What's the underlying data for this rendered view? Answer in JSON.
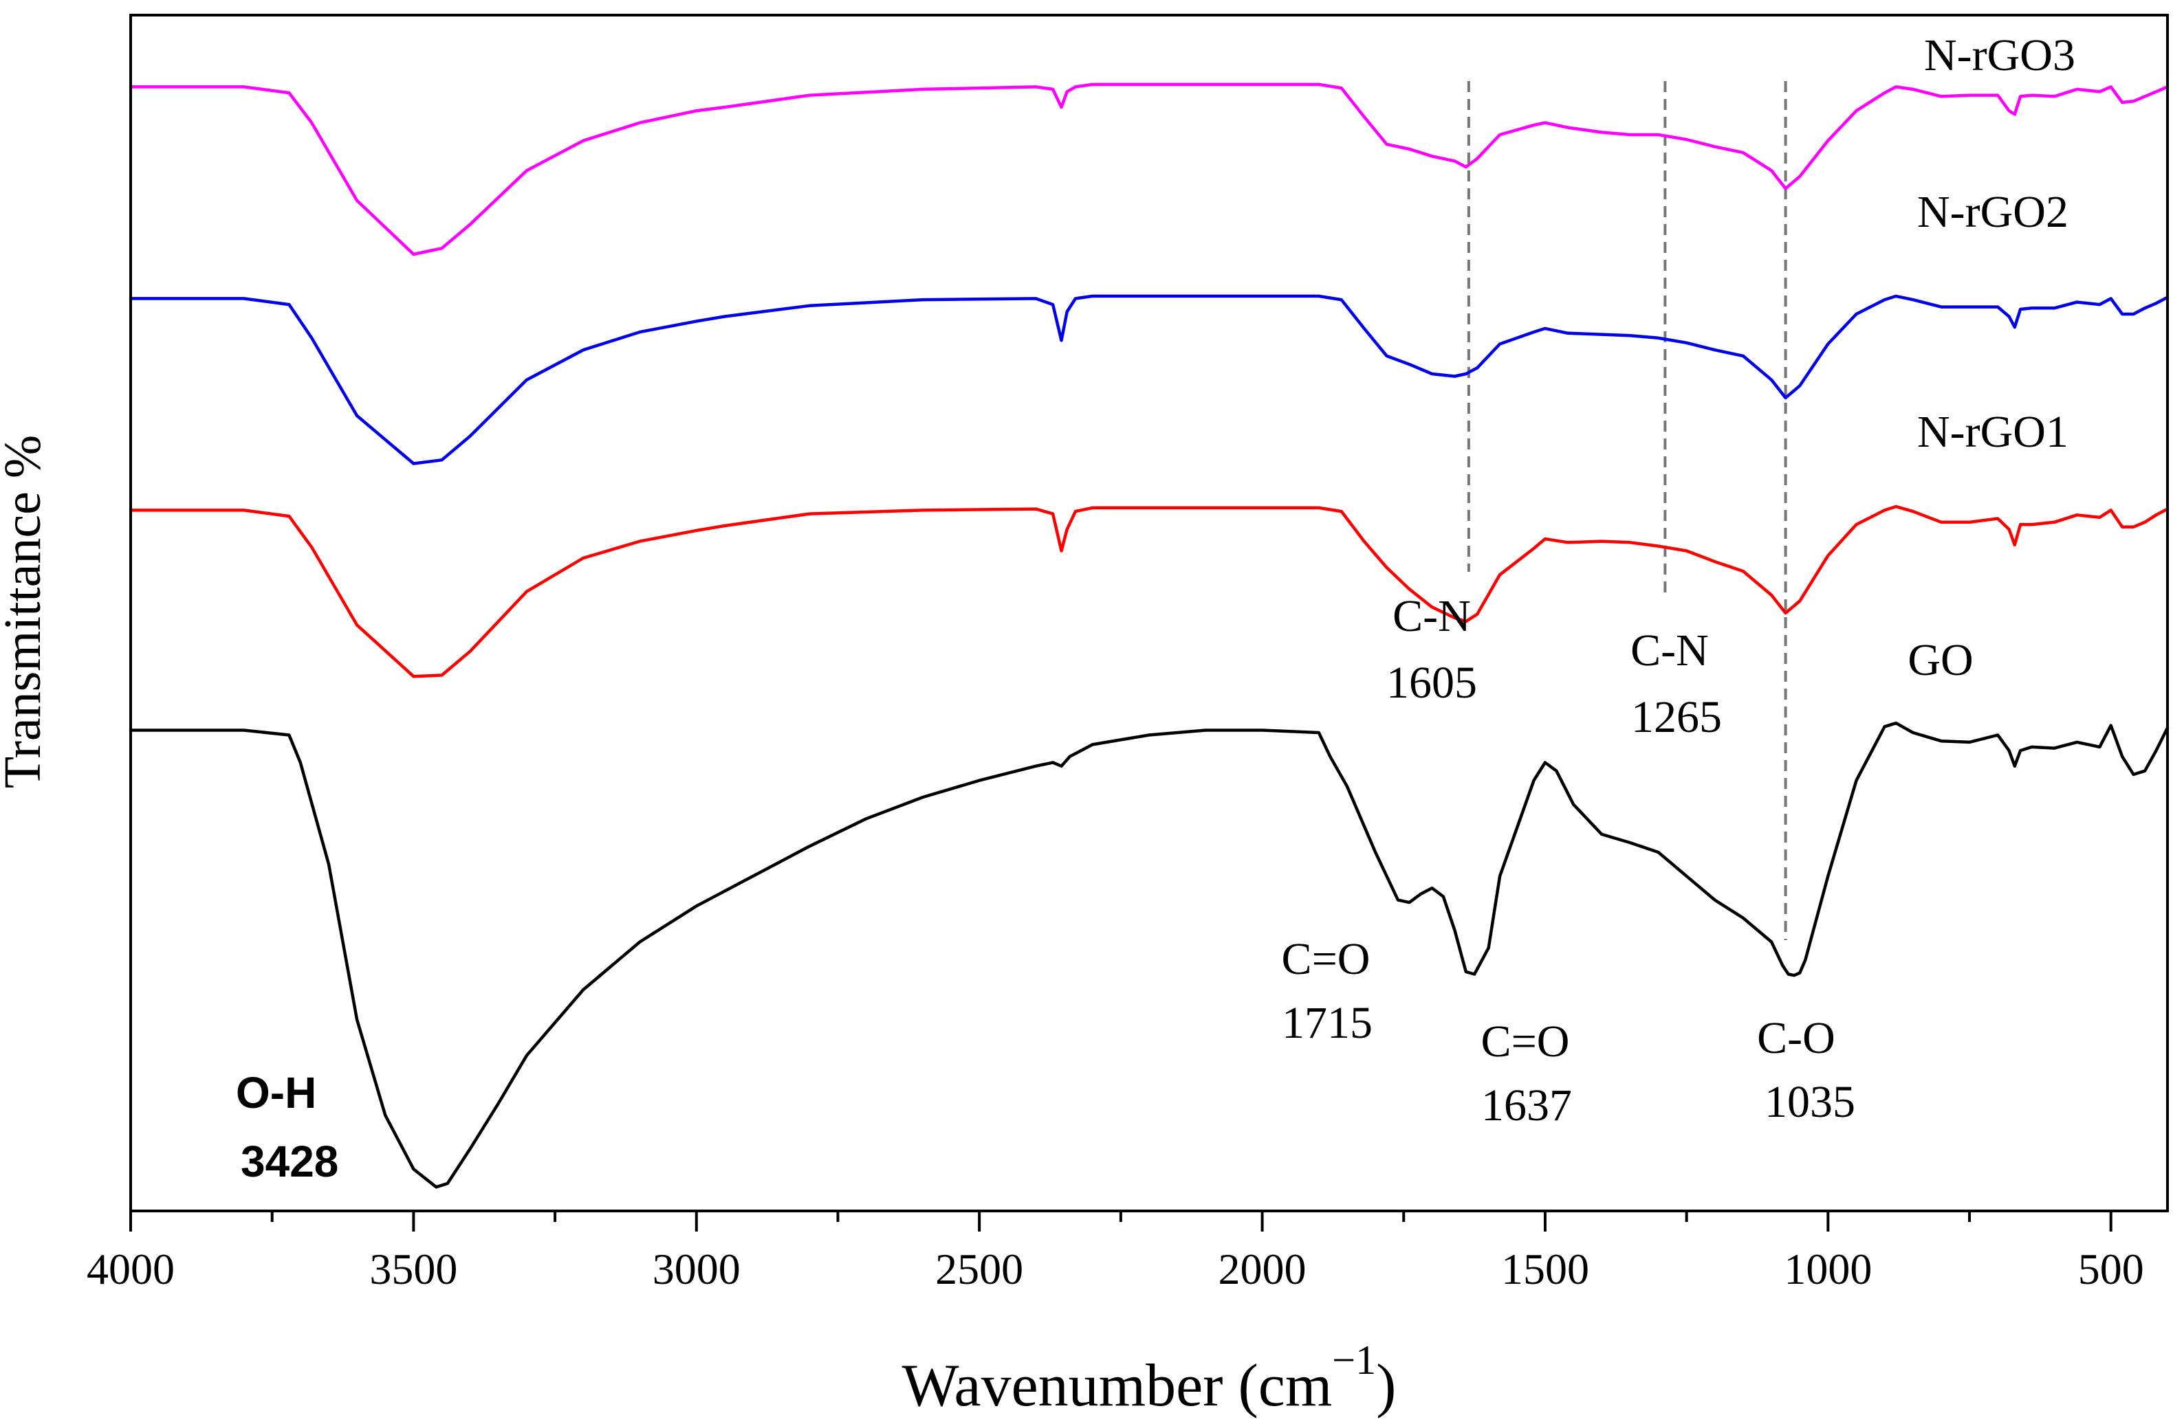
{
  "chart_data": {
    "type": "line",
    "title": "",
    "xlabel": "Wavenumber (cm",
    "xlabel_sup": "−1",
    "xlabel_close": ")",
    "ylabel": "Transmittance %",
    "xlim": [
      4000,
      400
    ],
    "x_reversed": true,
    "y_ticks_shown": false,
    "x_ticks": [
      4000,
      3500,
      3000,
      2500,
      2000,
      1500,
      1000,
      500
    ],
    "x_tick_labels": [
      "4000",
      "3500",
      "3000",
      "2500",
      "2000",
      "1500",
      "1000",
      "500"
    ],
    "offset_note": "vertically stacked spectra; values are relative transmittance including offset (top of frame = 100, bottom = 0)",
    "ylim": [
      0,
      100
    ],
    "series": [
      {
        "name": "N-rGO3",
        "label": "N-rGO3",
        "color": "#ff00ff",
        "x": [
          4000,
          3800,
          3720,
          3680,
          3600,
          3500,
          3450,
          3400,
          3300,
          3200,
          3100,
          3000,
          2950,
          2800,
          2600,
          2400,
          2370,
          2355,
          2345,
          2330,
          2300,
          2100,
          1900,
          1860,
          1820,
          1780,
          1740,
          1700,
          1660,
          1640,
          1620,
          1580,
          1520,
          1500,
          1460,
          1400,
          1350,
          1300,
          1250,
          1200,
          1150,
          1100,
          1075,
          1050,
          1000,
          950,
          900,
          880,
          850,
          800,
          750,
          700,
          680,
          670,
          660,
          640,
          600,
          560,
          520,
          500,
          480,
          460,
          440,
          420,
          400
        ],
        "y": [
          94.0,
          94.0,
          93.5,
          91.0,
          84.5,
          80.0,
          80.5,
          82.5,
          87.0,
          89.5,
          91.0,
          92.0,
          92.3,
          93.3,
          93.8,
          94.0,
          93.8,
          92.3,
          93.6,
          94.0,
          94.2,
          94.2,
          94.2,
          93.9,
          91.5,
          89.2,
          88.8,
          88.2,
          87.8,
          87.3,
          88.0,
          90.0,
          90.8,
          91.0,
          90.6,
          90.2,
          90.0,
          90.0,
          89.6,
          89.0,
          88.5,
          87.0,
          85.5,
          86.5,
          89.5,
          92.0,
          93.5,
          94.0,
          93.8,
          93.2,
          93.3,
          93.3,
          92.0,
          91.7,
          93.2,
          93.3,
          93.2,
          93.8,
          93.6,
          94.0,
          92.7,
          92.8,
          93.2,
          93.6,
          94.0
        ]
      },
      {
        "name": "N-rGO2",
        "label": "N-rGO2",
        "color": "#0000ee",
        "x": [
          4000,
          3800,
          3720,
          3680,
          3600,
          3500,
          3450,
          3400,
          3300,
          3200,
          3100,
          3000,
          2950,
          2800,
          2600,
          2400,
          2370,
          2355,
          2345,
          2330,
          2300,
          2100,
          1900,
          1860,
          1820,
          1780,
          1740,
          1700,
          1660,
          1640,
          1620,
          1580,
          1520,
          1500,
          1460,
          1400,
          1350,
          1300,
          1250,
          1200,
          1150,
          1100,
          1075,
          1050,
          1000,
          950,
          900,
          880,
          850,
          800,
          750,
          700,
          680,
          670,
          660,
          640,
          600,
          560,
          520,
          500,
          480,
          460,
          440,
          420,
          400
        ],
        "y": [
          76.3,
          76.3,
          75.8,
          73.0,
          66.5,
          62.5,
          62.8,
          64.8,
          69.5,
          72.0,
          73.5,
          74.4,
          74.8,
          75.7,
          76.2,
          76.3,
          75.8,
          72.8,
          75.2,
          76.3,
          76.5,
          76.5,
          76.5,
          76.2,
          73.8,
          71.5,
          70.8,
          70.0,
          69.8,
          70.0,
          70.5,
          72.5,
          73.5,
          73.8,
          73.4,
          73.3,
          73.2,
          73.0,
          72.6,
          72.0,
          71.5,
          69.5,
          68.0,
          69.0,
          72.5,
          75.0,
          76.2,
          76.5,
          76.2,
          75.6,
          75.6,
          75.6,
          74.8,
          73.9,
          75.4,
          75.5,
          75.5,
          76.0,
          75.8,
          76.3,
          75.0,
          75.0,
          75.5,
          75.9,
          76.4
        ]
      },
      {
        "name": "N-rGO1",
        "label": "N-rGO1",
        "color": "#ff0000",
        "x": [
          4000,
          3800,
          3720,
          3680,
          3600,
          3500,
          3450,
          3400,
          3300,
          3200,
          3100,
          3000,
          2950,
          2800,
          2600,
          2400,
          2370,
          2355,
          2345,
          2330,
          2300,
          2100,
          1900,
          1860,
          1820,
          1780,
          1740,
          1700,
          1660,
          1640,
          1620,
          1580,
          1520,
          1500,
          1460,
          1400,
          1350,
          1300,
          1250,
          1200,
          1150,
          1100,
          1075,
          1050,
          1000,
          950,
          900,
          880,
          850,
          800,
          750,
          700,
          680,
          670,
          660,
          640,
          600,
          560,
          520,
          500,
          480,
          460,
          440,
          420,
          400
        ],
        "y": [
          58.6,
          58.6,
          58.1,
          55.5,
          49.0,
          44.7,
          44.8,
          46.8,
          51.8,
          54.6,
          56.0,
          56.9,
          57.3,
          58.3,
          58.6,
          58.7,
          58.3,
          55.2,
          57.0,
          58.5,
          58.8,
          58.8,
          58.8,
          58.5,
          56.0,
          53.8,
          52.0,
          50.5,
          49.6,
          49.3,
          49.9,
          53.2,
          55.4,
          56.2,
          55.9,
          56.0,
          55.9,
          55.6,
          55.2,
          54.3,
          53.5,
          51.5,
          50.0,
          51.0,
          54.8,
          57.4,
          58.6,
          58.9,
          58.5,
          57.6,
          57.6,
          57.9,
          57.0,
          55.7,
          57.4,
          57.4,
          57.6,
          58.2,
          58.0,
          58.6,
          57.2,
          57.2,
          57.6,
          58.2,
          58.7
        ]
      },
      {
        "name": "GO",
        "label": "GO",
        "color": "#000000",
        "x": [
          4000,
          3800,
          3720,
          3700,
          3650,
          3600,
          3550,
          3500,
          3460,
          3440,
          3400,
          3350,
          3300,
          3200,
          3100,
          3000,
          2900,
          2800,
          2700,
          2600,
          2500,
          2400,
          2370,
          2355,
          2340,
          2300,
          2200,
          2100,
          2000,
          1900,
          1880,
          1850,
          1800,
          1760,
          1740,
          1720,
          1700,
          1680,
          1660,
          1640,
          1625,
          1600,
          1580,
          1550,
          1520,
          1500,
          1480,
          1450,
          1400,
          1350,
          1300,
          1250,
          1200,
          1150,
          1100,
          1080,
          1070,
          1060,
          1050,
          1040,
          1000,
          950,
          900,
          880,
          850,
          800,
          750,
          700,
          680,
          670,
          660,
          640,
          600,
          560,
          520,
          500,
          480,
          460,
          440,
          420,
          400
        ],
        "y": [
          40.2,
          40.2,
          39.8,
          37.5,
          29.0,
          16.0,
          8.0,
          3.5,
          2.0,
          2.3,
          5.2,
          9.0,
          13.0,
          18.5,
          22.5,
          25.5,
          28.0,
          30.5,
          32.8,
          34.6,
          36.0,
          37.2,
          37.5,
          37.2,
          38.0,
          39.0,
          39.8,
          40.2,
          40.2,
          40.0,
          38.0,
          35.5,
          30.0,
          26.0,
          25.8,
          26.5,
          27.0,
          26.3,
          23.5,
          20.0,
          19.8,
          22.0,
          28.0,
          32.0,
          36.0,
          37.5,
          36.8,
          34.0,
          31.5,
          30.8,
          30.0,
          28.0,
          26.0,
          24.5,
          22.5,
          20.5,
          19.8,
          19.7,
          19.9,
          21.0,
          28.0,
          36.0,
          40.5,
          40.8,
          40.0,
          39.3,
          39.2,
          39.8,
          38.5,
          37.2,
          38.5,
          38.8,
          38.7,
          39.2,
          38.8,
          40.6,
          38.0,
          36.5,
          36.8,
          38.5,
          40.4
        ]
      }
    ],
    "reference_lines": [
      {
        "x": 1635,
        "label": "dashed-1605"
      },
      {
        "x": 1288,
        "label": "dashed-1265"
      },
      {
        "x": 1075,
        "label": "dashed-1035"
      }
    ],
    "annotations": [
      {
        "id": "oh",
        "line1": "O-H",
        "line2": "3428",
        "font": "sans",
        "bold": true
      },
      {
        "id": "co1715",
        "line1": "C=O",
        "line2": "1715",
        "font": "serif",
        "bold": false
      },
      {
        "id": "co1637",
        "line1": "C=O",
        "line2": "1637",
        "font": "serif",
        "bold": false
      },
      {
        "id": "c-o1035",
        "line1": "C-O",
        "line2": "1035",
        "font": "serif",
        "bold": false
      },
      {
        "id": "cn1605",
        "line1": "C-N",
        "line2": "1605",
        "font": "serif",
        "bold": false
      },
      {
        "id": "cn1265",
        "line1": "C-N",
        "line2": "1265",
        "font": "serif",
        "bold": false
      }
    ]
  }
}
